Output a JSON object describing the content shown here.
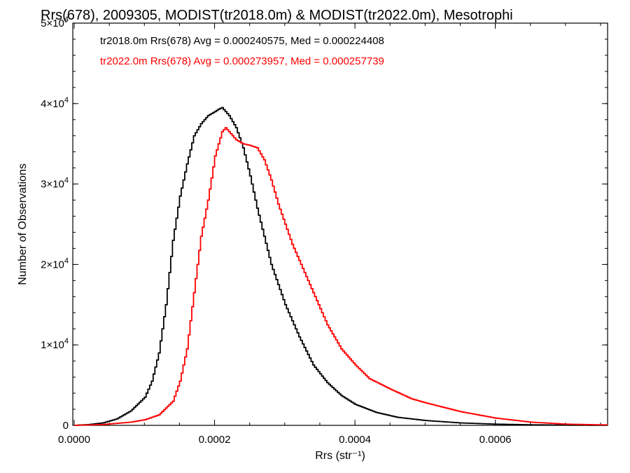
{
  "chart_data": {
    "type": "line",
    "title": "Rrs(678), 2009305, MODIST(tr2018.0m) & MODIST(tr2022.0m), Mesotrophi",
    "xlabel": "Rrs (str⁻¹)",
    "ylabel": "Number of Observations",
    "xlim": [
      -2e-06,
      0.00076
    ],
    "ylim": [
      0,
      50000
    ],
    "x_ticks": [
      0.0,
      0.0002,
      0.0004,
      0.0006
    ],
    "x_tick_labels": [
      "0.0000",
      "0.0002",
      "0.0004",
      "0.0006"
    ],
    "y_ticks": [
      0,
      10000,
      20000,
      30000,
      40000,
      50000
    ],
    "y_tick_labels": [
      {
        "base": "0",
        "exp": ""
      },
      {
        "base": "1×10",
        "exp": "4"
      },
      {
        "base": "2×10",
        "exp": "4"
      },
      {
        "base": "3×10",
        "exp": "4"
      },
      {
        "base": "4×10",
        "exp": "4"
      },
      {
        "base": "5×10",
        "exp": "4"
      }
    ],
    "grid": false,
    "legend_placement": "top-left",
    "series": [
      {
        "name": "tr2018.0m Rrs(678) Avg = 0.000240575, Med = 0.000224408",
        "color": "#000000",
        "x": [
          0.0,
          2e-05,
          4e-05,
          6e-05,
          8e-05,
          0.0001,
          0.00011,
          0.00012,
          0.00013,
          0.00014,
          0.00015,
          0.00016,
          0.00017,
          0.00018,
          0.00019,
          0.0002,
          0.000205,
          0.00021,
          0.000215,
          0.00022,
          0.00023,
          0.00024,
          0.00025,
          0.00026,
          0.00027,
          0.00028,
          0.0003,
          0.00032,
          0.00034,
          0.00036,
          0.00038,
          0.0004,
          0.00043,
          0.00046,
          0.0005,
          0.00055,
          0.0006,
          0.00065,
          0.0007,
          0.00076
        ],
        "values": [
          0,
          100,
          300,
          800,
          1800,
          3500,
          5500,
          9000,
          15000,
          23000,
          28500,
          32500,
          36000,
          37500,
          38500,
          39000,
          39300,
          39500,
          39000,
          38500,
          37000,
          34500,
          31000,
          27000,
          23500,
          20000,
          15000,
          11000,
          7500,
          5300,
          3700,
          2600,
          1600,
          1000,
          600,
          300,
          150,
          70,
          30,
          10
        ]
      },
      {
        "name": "tr2022.0m Rrs(678) Avg = 0.000273957, Med = 0.000257739",
        "color": "#ff0000",
        "x": [
          0.0,
          4e-05,
          8e-05,
          0.0001,
          0.00012,
          0.00014,
          0.00015,
          0.00016,
          0.00017,
          0.00018,
          0.00019,
          0.0002,
          0.00021,
          0.000215,
          0.00022,
          0.00023,
          0.00024,
          0.00025,
          0.00026,
          0.00027,
          0.00028,
          0.00029,
          0.0003,
          0.00031,
          0.00032,
          0.00033,
          0.00034,
          0.00035,
          0.00036,
          0.00038,
          0.0004,
          0.00042,
          0.00045,
          0.00048,
          0.0005,
          0.00055,
          0.0006,
          0.00065,
          0.0007,
          0.00076
        ],
        "values": [
          0,
          100,
          400,
          700,
          1300,
          3000,
          5500,
          9500,
          16500,
          23500,
          28000,
          33500,
          36500,
          37000,
          36500,
          35500,
          35000,
          34800,
          34500,
          33000,
          30500,
          27500,
          25000,
          22500,
          20500,
          18500,
          16500,
          14500,
          12500,
          9500,
          7500,
          5800,
          4500,
          3300,
          2800,
          1700,
          900,
          400,
          150,
          50
        ]
      }
    ]
  }
}
